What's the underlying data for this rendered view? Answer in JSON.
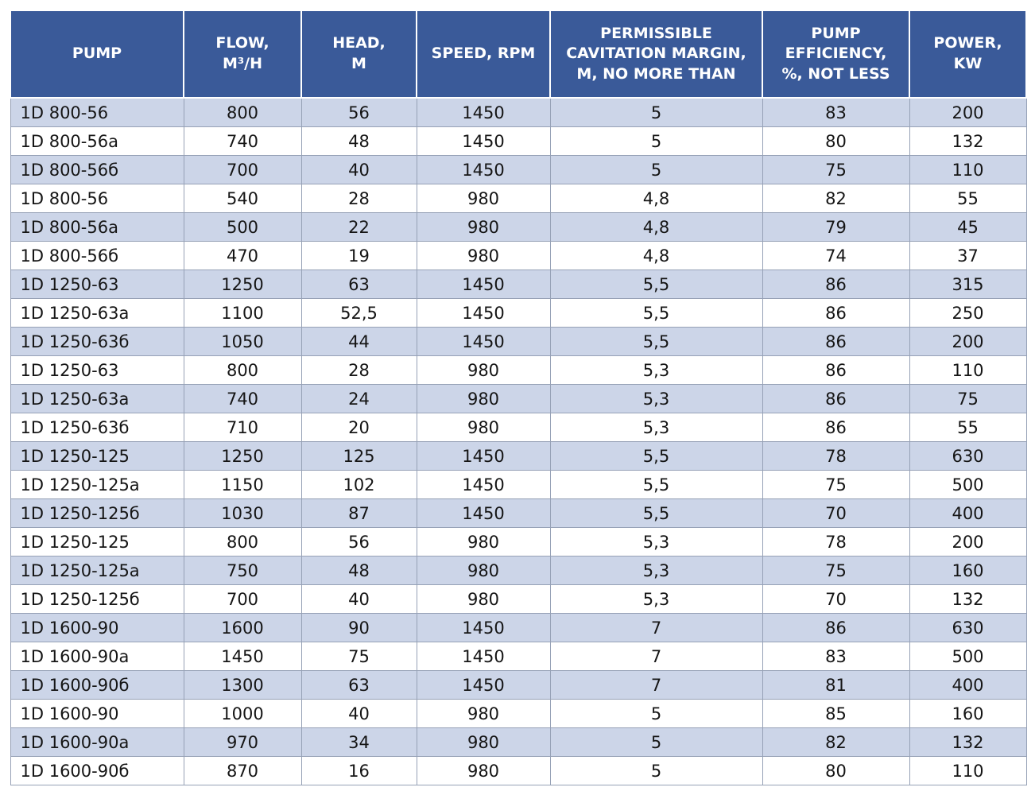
{
  "colors": {
    "header_bg": "#3a5a99",
    "header_text": "#ffffff",
    "row_alt": "#ccd5e8",
    "row_base": "#ffffff",
    "border": "#96a1b6",
    "body_text": "#151515"
  },
  "table": {
    "columns": [
      "PUMP",
      "FLOW,\nM³/H",
      "HEAD,\nM",
      "SPEED, RPM",
      "PERMISSIBLE\nCAVITATION MARGIN,\nM, NO MORE THAN",
      "PUMP\nEFFICIENCY,\n%, NOT LESS",
      "POWER,\nKW"
    ],
    "rows": [
      [
        "1D 800-56",
        "800",
        "56",
        "1450",
        "5",
        "83",
        "200"
      ],
      [
        "1D 800-56a",
        "740",
        "48",
        "1450",
        "5",
        "80",
        "132"
      ],
      [
        "1D 800-56б",
        "700",
        "40",
        "1450",
        "5",
        "75",
        "110"
      ],
      [
        "1D 800-56",
        "540",
        "28",
        "980",
        "4,8",
        "82",
        "55"
      ],
      [
        "1D 800-56a",
        "500",
        "22",
        "980",
        "4,8",
        "79",
        "45"
      ],
      [
        "1D 800-56б",
        "470",
        "19",
        "980",
        "4,8",
        "74",
        "37"
      ],
      [
        "1D 1250-63",
        "1250",
        "63",
        "1450",
        "5,5",
        "86",
        "315"
      ],
      [
        "1D 1250-63a",
        "1100",
        "52,5",
        "1450",
        "5,5",
        "86",
        "250"
      ],
      [
        "1D 1250-63б",
        "1050",
        "44",
        "1450",
        "5,5",
        "86",
        "200"
      ],
      [
        "1D 1250-63",
        "800",
        "28",
        "980",
        "5,3",
        "86",
        "110"
      ],
      [
        "1D 1250-63a",
        "740",
        "24",
        "980",
        "5,3",
        "86",
        "75"
      ],
      [
        "1D 1250-63б",
        "710",
        "20",
        "980",
        "5,3",
        "86",
        "55"
      ],
      [
        "1D 1250-125",
        "1250",
        "125",
        "1450",
        "5,5",
        "78",
        "630"
      ],
      [
        "1D 1250-125a",
        "1150",
        "102",
        "1450",
        "5,5",
        "75",
        "500"
      ],
      [
        "1D 1250-125б",
        "1030",
        "87",
        "1450",
        "5,5",
        "70",
        "400"
      ],
      [
        "1D 1250-125",
        "800",
        "56",
        "980",
        "5,3",
        "78",
        "200"
      ],
      [
        "1D 1250-125a",
        "750",
        "48",
        "980",
        "5,3",
        "75",
        "160"
      ],
      [
        "1D 1250-125б",
        "700",
        "40",
        "980",
        "5,3",
        "70",
        "132"
      ],
      [
        "1D 1600-90",
        "1600",
        "90",
        "1450",
        "7",
        "86",
        "630"
      ],
      [
        "1D 1600-90a",
        "1450",
        "75",
        "1450",
        "7",
        "83",
        "500"
      ],
      [
        "1D 1600-90б",
        "1300",
        "63",
        "1450",
        "7",
        "81",
        "400"
      ],
      [
        "1D 1600-90",
        "1000",
        "40",
        "980",
        "5",
        "85",
        "160"
      ],
      [
        "1D 1600-90a",
        "970",
        "34",
        "980",
        "5",
        "82",
        "132"
      ],
      [
        "1D 1600-90б",
        "870",
        "16",
        "980",
        "5",
        "80",
        "110"
      ]
    ]
  }
}
